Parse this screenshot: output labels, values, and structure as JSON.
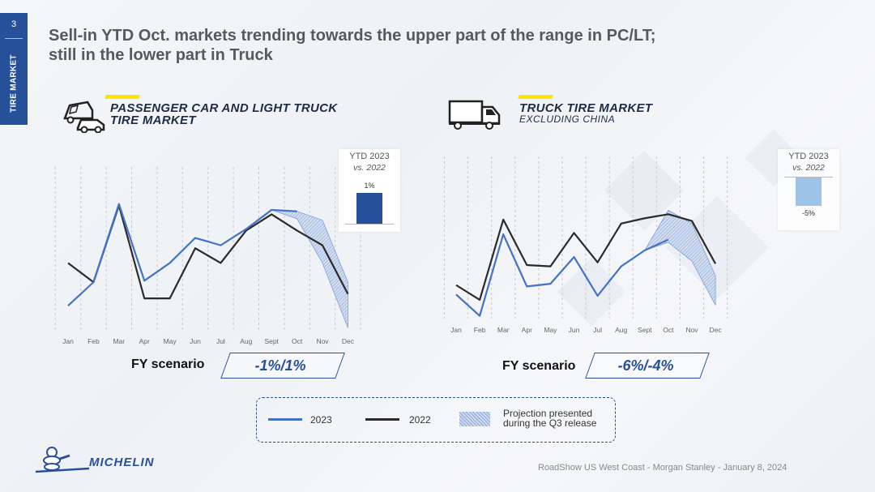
{
  "page": {
    "number": "3",
    "section": "TIRE MARKET",
    "title_line1": "Sell-in YTD Oct. markets trending towards the upper part of the range in PC/LT;",
    "title_line2": "still in the lower part in Truck",
    "footer": "RoadShow US West Coast - Morgan Stanley - January 8, 2024",
    "logo_text": "MICHELIN"
  },
  "colors": {
    "series_2023": "#4472c4",
    "series_2022": "#2b2b2b",
    "ytd_pc": "#27509b",
    "ytd_truck": "#9dc3e6",
    "accent": "#27509b",
    "yellow": "#fce500"
  },
  "icons": {
    "pc": "car-and-van-icon",
    "truck": "truck-icon",
    "logo": "bibendum-icon"
  },
  "pc": {
    "title_line1": "PASSENGER CAR AND LIGHT TRUCK",
    "title_line2": "TIRE MARKET",
    "ytd_title": "YTD 2023",
    "ytd_sub": "vs. 2022",
    "ytd_label": "1%",
    "fy_label": "FY scenario",
    "fy_value": "-1%/1%"
  },
  "truck": {
    "title_line1": "TRUCK TIRE MARKET",
    "title_line2": "EXCLUDING CHINA",
    "ytd_title": "YTD 2023",
    "ytd_sub": "vs. 2022",
    "ytd_label": "-5%",
    "fy_label": "FY scenario",
    "fy_value": "-6%/-4%"
  },
  "legend": {
    "s2023": "2023",
    "s2022": "2022",
    "projection_line1": "Projection presented",
    "projection_line2": "during the Q3 release"
  },
  "chart_data": [
    {
      "type": "line",
      "categories": [
        "Jan",
        "Feb",
        "Mar",
        "Apr",
        "May",
        "Jun",
        "Jul",
        "Aug",
        "Sept",
        "Oct",
        "Nov",
        "Dec"
      ],
      "ylim": [
        0,
        100
      ],
      "grid": "vertical dashed",
      "series": [
        {
          "name": "2023",
          "values": [
            18,
            34,
            87,
            35,
            47,
            64,
            59,
            70,
            83,
            82,
            null,
            null
          ]
        },
        {
          "name": "2022",
          "values": [
            47,
            34,
            86,
            23,
            23,
            57,
            47,
            69,
            80,
            69,
            59,
            26
          ]
        }
      ],
      "projection_band": {
        "x_start": "Sept",
        "upper": [
          83,
          82,
          76,
          34
        ],
        "lower": [
          83,
          77,
          47,
          3
        ]
      },
      "ytd_bar": {
        "value": 1,
        "ylim": [
          -8,
          3
        ]
      }
    },
    {
      "type": "line",
      "categories": [
        "Jan",
        "Feb",
        "Mar",
        "Apr",
        "May",
        "Jun",
        "Jul",
        "Aug",
        "Sept",
        "Oct",
        "Nov",
        "Dec"
      ],
      "ylim": [
        0,
        100
      ],
      "grid": "vertical dashed",
      "series": [
        {
          "name": "2023",
          "values": [
            18,
            2,
            63,
            24,
            26,
            46,
            17,
            39,
            51,
            59,
            null,
            null
          ]
        },
        {
          "name": "2022",
          "values": [
            25,
            14,
            74,
            40,
            39,
            64,
            42,
            71,
            75,
            78,
            73,
            41
          ]
        }
      ],
      "projection_band": {
        "x_start": "Sept",
        "upper": [
          51,
          81,
          71,
          32
        ],
        "lower": [
          51,
          57,
          43,
          10
        ]
      },
      "ytd_bar": {
        "value": -5,
        "ylim": [
          -8,
          3
        ]
      }
    }
  ]
}
